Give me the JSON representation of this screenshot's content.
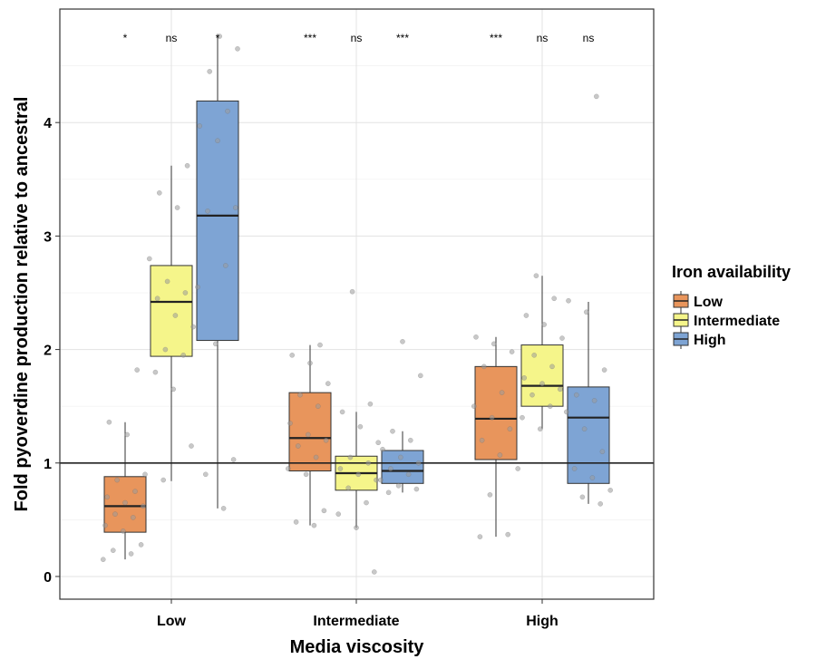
{
  "chart_data": {
    "type": "box",
    "xlabel": "Media viscosity",
    "ylabel": "Fold pyoverdine production relative to ancestral",
    "categories": [
      "Low",
      "Intermediate",
      "High"
    ],
    "ylim": [
      -0.2,
      5.0
    ],
    "yticks": [
      "0",
      "1",
      "2",
      "3",
      "4"
    ],
    "reference_line": 1,
    "grid": true,
    "legend": {
      "title": "Iron availability",
      "position": "right",
      "entries": [
        "Low",
        "Intermediate",
        "High"
      ]
    },
    "colors": {
      "Low": "#e8955c",
      "Intermediate": "#f5f58a",
      "High": "#7ea4d4"
    },
    "significance": [
      [
        "*",
        "***",
        "***"
      ],
      [
        "ns",
        "ns",
        "ns"
      ],
      [
        "*",
        "***",
        "ns"
      ]
    ],
    "series": [
      {
        "name": "Low",
        "boxes": [
          {
            "min": 0.15,
            "q1": 0.39,
            "median": 0.62,
            "q3": 0.88,
            "max": 1.36,
            "points": [
              0.15,
              0.2,
              0.23,
              0.28,
              0.4,
              0.45,
              0.52,
              0.55,
              0.62,
              0.65,
              0.7,
              0.75,
              0.85,
              0.9,
              1.25,
              1.36,
              1.82
            ]
          },
          {
            "min": 0.45,
            "q1": 0.93,
            "median": 1.22,
            "q3": 1.62,
            "max": 2.04,
            "points": [
              0.45,
              0.48,
              0.58,
              0.9,
              0.95,
              1.05,
              1.15,
              1.2,
              1.25,
              1.35,
              1.5,
              1.6,
              1.7,
              1.88,
              1.95,
              2.04
            ]
          },
          {
            "min": 0.35,
            "q1": 1.03,
            "median": 1.39,
            "q3": 1.85,
            "max": 2.11,
            "points": [
              0.35,
              0.37,
              0.72,
              0.95,
              1.07,
              1.2,
              1.3,
              1.4,
              1.5,
              1.62,
              1.85,
              1.98,
              2.05,
              2.11
            ]
          }
        ]
      },
      {
        "name": "Intermediate",
        "boxes": [
          {
            "min": 0.84,
            "q1": 1.94,
            "median": 2.42,
            "q3": 2.74,
            "max": 3.62,
            "points": [
              0.85,
              1.15,
              1.65,
              1.8,
              1.95,
              2.0,
              2.2,
              2.3,
              2.45,
              2.5,
              2.6,
              2.8,
              3.25,
              3.38,
              3.62
            ]
          },
          {
            "min": 0.43,
            "q1": 0.76,
            "median": 0.91,
            "q3": 1.06,
            "max": 1.45,
            "points": [
              0.04,
              0.43,
              0.55,
              0.65,
              0.78,
              0.85,
              0.9,
              0.95,
              1.0,
              1.05,
              1.18,
              1.32,
              1.45,
              1.52,
              2.51
            ]
          },
          {
            "min": 1.3,
            "q1": 1.5,
            "median": 1.68,
            "q3": 2.04,
            "max": 2.65,
            "points": [
              1.3,
              1.4,
              1.5,
              1.6,
              1.65,
              1.7,
              1.75,
              1.85,
              1.95,
              2.1,
              2.22,
              2.3,
              2.45,
              2.65
            ]
          }
        ]
      },
      {
        "name": "High",
        "boxes": [
          {
            "min": 0.6,
            "q1": 2.08,
            "median": 3.18,
            "q3": 4.19,
            "max": 4.76,
            "points": [
              0.6,
              0.9,
              1.03,
              2.05,
              2.55,
              2.74,
              3.22,
              3.25,
              3.84,
              3.97,
              4.1,
              4.45,
              4.65,
              4.76
            ]
          },
          {
            "min": 0.74,
            "q1": 0.82,
            "median": 0.93,
            "q3": 1.11,
            "max": 1.28,
            "points": [
              0.74,
              0.77,
              0.8,
              0.85,
              0.9,
              0.95,
              1.0,
              1.05,
              1.12,
              1.2,
              1.28,
              1.77,
              2.07
            ]
          },
          {
            "min": 0.64,
            "q1": 0.82,
            "median": 1.4,
            "q3": 1.67,
            "max": 2.42,
            "points": [
              0.64,
              0.7,
              0.76,
              0.87,
              0.95,
              1.1,
              1.3,
              1.45,
              1.55,
              1.6,
              1.82,
              2.33,
              2.43,
              4.23
            ]
          }
        ]
      }
    ]
  }
}
